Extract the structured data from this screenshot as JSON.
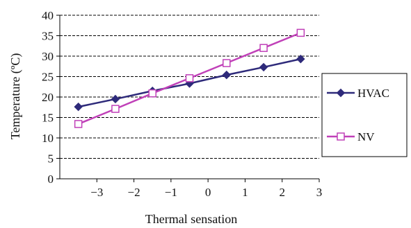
{
  "chart_data": {
    "type": "line",
    "title": "",
    "xlabel": "Thermal sensation",
    "ylabel": "Temperature (ºC)",
    "xlim": [
      -4,
      3
    ],
    "ylim": [
      0,
      40
    ],
    "xticks": [
      -3,
      -2,
      -1,
      0,
      1,
      2,
      3
    ],
    "xtick_labels": [
      "−3",
      "−2",
      "−1",
      "0",
      "1",
      "2",
      "3"
    ],
    "yticks": [
      0,
      5,
      10,
      15,
      20,
      25,
      30,
      35,
      40
    ],
    "ytick_labels": [
      "0",
      "5",
      "10",
      "15",
      "20",
      "25",
      "30",
      "35",
      "40"
    ],
    "grid": "horizontal dashed",
    "legend_position": "right",
    "series": [
      {
        "name": "HVAC",
        "color": "#2e2a7a",
        "marker": "filled-diamond",
        "x": [
          -3.5,
          -2.5,
          -1.5,
          -0.5,
          0.5,
          1.5,
          2.5
        ],
        "y": [
          17.6,
          19.5,
          21.5,
          23.3,
          25.4,
          27.3,
          29.3
        ]
      },
      {
        "name": "NV",
        "color": "#c040b8",
        "marker": "open-square",
        "x": [
          -3.5,
          -2.5,
          -1.5,
          -0.5,
          0.5,
          1.5,
          2.5
        ],
        "y": [
          13.4,
          17.1,
          20.9,
          24.6,
          28.3,
          32.0,
          35.7
        ]
      }
    ]
  }
}
